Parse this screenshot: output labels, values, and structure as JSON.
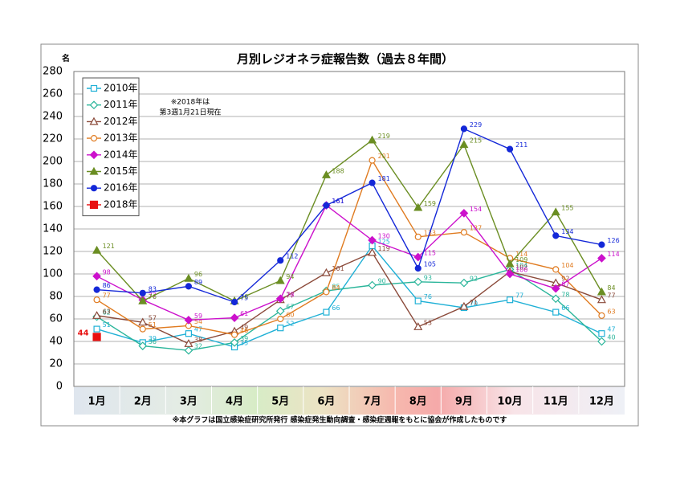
{
  "chart_data": {
    "type": "line",
    "title": "月別レジオネラ症報告数（過去８年間）",
    "y_unit": "名",
    "note": [
      "※2018年は",
      "第3週1月21日現在"
    ],
    "footnote": "※本グラフは国立感染症研究所発行 感染症発生動向調査・感染症週報をもとに協会が作成したものです",
    "categories": [
      "1月",
      "2月",
      "3月",
      "4月",
      "5月",
      "6月",
      "7月",
      "8月",
      "9月",
      "10月",
      "11月",
      "12月"
    ],
    "ylim": [
      0,
      280
    ],
    "yticks": [
      0,
      20,
      40,
      60,
      80,
      100,
      120,
      140,
      160,
      180,
      200,
      220,
      240,
      260,
      280
    ],
    "grid": true,
    "legend": "upper left",
    "series": [
      {
        "name": "2010年",
        "color": "#1fb0d6",
        "marker": "square-open",
        "values": [
          51,
          39,
          47,
          35,
          52,
          66,
          125,
          76,
          70,
          77,
          66,
          47
        ]
      },
      {
        "name": "2011年",
        "color": "#2ab59a",
        "marker": "diamond-open",
        "values": [
          62,
          36,
          32,
          39,
          67,
          85,
          90,
          93,
          92,
          104,
          78,
          40
        ]
      },
      {
        "name": "2012年",
        "color": "#8b4a3a",
        "marker": "triangle-open",
        "values": [
          63,
          57,
          38,
          49,
          77,
          101,
          119,
          53,
          71,
          102,
          92,
          77
        ]
      },
      {
        "name": "2013年",
        "color": "#e07b20",
        "marker": "circle-open",
        "values": [
          77,
          51,
          54,
          46,
          60,
          84,
          201,
          133,
          137,
          114,
          104,
          63
        ]
      },
      {
        "name": "2014年",
        "color": "#cc11cc",
        "marker": "diamond",
        "values": [
          98,
          77,
          59,
          61,
          78,
          161,
          130,
          115,
          154,
          100,
          87,
          114
        ]
      },
      {
        "name": "2015年",
        "color": "#6b8e23",
        "marker": "triangle",
        "values": [
          121,
          76,
          96,
          76,
          94,
          188,
          219,
          159,
          215,
          109,
          155,
          84
        ]
      },
      {
        "name": "2016年",
        "color": "#1428d8",
        "marker": "circle",
        "values": [
          86,
          83,
          89,
          75,
          112,
          161,
          181,
          105,
          229,
          211,
          134,
          126
        ]
      },
      {
        "name": "2018年",
        "color": "#e81010",
        "marker": "square",
        "values": [
          44,
          null,
          null,
          null,
          null,
          null,
          null,
          null,
          null,
          null,
          null,
          null
        ]
      }
    ]
  }
}
